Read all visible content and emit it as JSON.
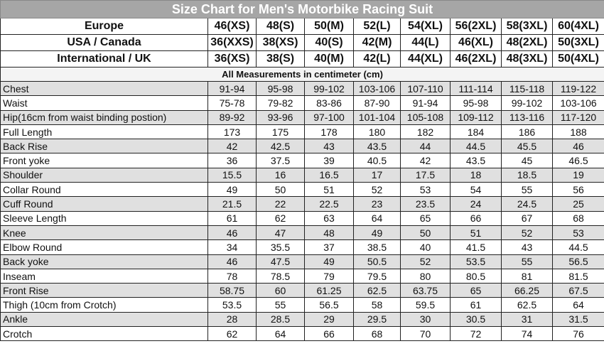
{
  "title": "Size Chart for Men's Motorbike Racing Suit",
  "size_rows": [
    {
      "label": "Europe",
      "values": [
        "46(XS)",
        "48(S)",
        "50(M)",
        "52(L)",
        "54(XL)",
        "56(2XL)",
        "58(3XL)",
        "60(4XL)"
      ]
    },
    {
      "label": "USA / Canada",
      "values": [
        "36(XXS)",
        "38(XS)",
        "40(S)",
        "42(M)",
        "44(L)",
        "46(XL)",
        "48(2XL)",
        "50(3XL)"
      ]
    },
    {
      "label": "International / UK",
      "values": [
        "36(XS)",
        "38(S)",
        "40(M)",
        "42(L)",
        "44(XL)",
        "46(2XL)",
        "48(3XL)",
        "50(4XL)"
      ]
    }
  ],
  "note": "All Measurements in centimeter (cm)",
  "measurements": [
    {
      "label": "Chest",
      "values": [
        "91-94",
        "95-98",
        "99-102",
        "103-106",
        "107-110",
        "111-114",
        "115-118",
        "119-122"
      ]
    },
    {
      "label": "Waist",
      "values": [
        "75-78",
        "79-82",
        "83-86",
        "87-90",
        "91-94",
        "95-98",
        "99-102",
        "103-106"
      ]
    },
    {
      "label": "Hip(16cm from waist binding postion)",
      "values": [
        "89-92",
        "93-96",
        "97-100",
        "101-104",
        "105-108",
        "109-112",
        "113-116",
        "117-120"
      ]
    },
    {
      "label": "Full Length",
      "values": [
        "173",
        "175",
        "178",
        "180",
        "182",
        "184",
        "186",
        "188"
      ]
    },
    {
      "label": "Back Rise",
      "values": [
        "42",
        "42.5",
        "43",
        "43.5",
        "44",
        "44.5",
        "45.5",
        "46"
      ]
    },
    {
      "label": "Front yoke",
      "values": [
        "36",
        "37.5",
        "39",
        "40.5",
        "42",
        "43.5",
        "45",
        "46.5"
      ]
    },
    {
      "label": "Shoulder",
      "values": [
        "15.5",
        "16",
        "16.5",
        "17",
        "17.5",
        "18",
        "18.5",
        "19"
      ]
    },
    {
      "label": "Collar Round",
      "values": [
        "49",
        "50",
        "51",
        "52",
        "53",
        "54",
        "55",
        "56"
      ]
    },
    {
      "label": "Cuff Round",
      "values": [
        "21.5",
        "22",
        "22.5",
        "23",
        "23.5",
        "24",
        "24.5",
        "25"
      ]
    },
    {
      "label": "Sleeve Length",
      "values": [
        "61",
        "62",
        "63",
        "64",
        "65",
        "66",
        "67",
        "68"
      ]
    },
    {
      "label": "Knee",
      "values": [
        "46",
        "47",
        "48",
        "49",
        "50",
        "51",
        "52",
        "53"
      ]
    },
    {
      "label": "Elbow Round",
      "values": [
        "34",
        "35.5",
        "37",
        "38.5",
        "40",
        "41.5",
        "43",
        "44.5"
      ]
    },
    {
      "label": "Back yoke",
      "values": [
        "46",
        "47.5",
        "49",
        "50.5",
        "52",
        "53.5",
        "55",
        "56.5"
      ]
    },
    {
      "label": "Inseam",
      "values": [
        "78",
        "78.5",
        "79",
        "79.5",
        "80",
        "80.5",
        "81",
        "81.5"
      ]
    },
    {
      "label": "Front Rise",
      "values": [
        "58.75",
        "60",
        "61.25",
        "62.5",
        "63.75",
        "65",
        "66.25",
        "67.5"
      ]
    },
    {
      "label": "Thigh (10cm from Crotch)",
      "values": [
        "53.5",
        "55",
        "56.5",
        "58",
        "59.5",
        "61",
        "62.5",
        "64"
      ]
    },
    {
      "label": "Ankle",
      "values": [
        "28",
        "28.5",
        "29",
        "29.5",
        "30",
        "30.5",
        "31",
        "31.5"
      ]
    },
    {
      "label": "Crotch",
      "values": [
        "62",
        "64",
        "66",
        "68",
        "70",
        "72",
        "74",
        "76"
      ]
    }
  ],
  "colors": {
    "title_bg": "#a6a6a6",
    "alt_row": "#e0e0e0"
  }
}
